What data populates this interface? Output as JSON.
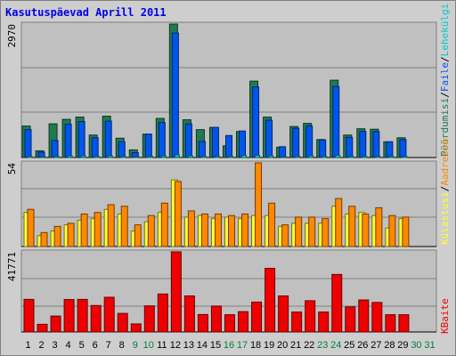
{
  "title": "Kasutuspäevad Aprill 2011",
  "colors": {
    "hits": "#1f7a52",
    "files": "#0055ee",
    "pages": "#00cccc",
    "visits": "#ffff33",
    "sites": "#ff8800",
    "kbytes": "#ee0000",
    "weekday_label": "#000000",
    "weekend_label": "#008040"
  },
  "chart_data": [
    {
      "type": "bar",
      "panel": "top",
      "ymax_label": "2970",
      "legend": [
        "Pöördumisi",
        "Faile",
        "Lehekülgi"
      ],
      "legend_separator": "/",
      "categories": [
        "1",
        "2",
        "3",
        "4",
        "5",
        "6",
        "7",
        "8",
        "9",
        "10",
        "11",
        "12",
        "13",
        "14",
        "15",
        "16",
        "17",
        "18",
        "19",
        "20",
        "21",
        "22",
        "23",
        "24",
        "25",
        "26",
        "27",
        "28",
        "29",
        "30",
        "31"
      ],
      "weekend_days": [
        "9",
        "10",
        "16",
        "17",
        "23",
        "24",
        "30",
        "31"
      ],
      "ylim": [
        0,
        2970
      ],
      "series": [
        {
          "name": "Pöördumisi",
          "values": [
            700,
            150,
            750,
            850,
            900,
            500,
            920,
            430,
            170,
            520,
            870,
            2970,
            840,
            620,
            670,
            260,
            580,
            1700,
            900,
            230,
            690,
            760,
            400,
            1720,
            500,
            640,
            630,
            350,
            440,
            null,
            null
          ]
        },
        {
          "name": "Faile",
          "values": [
            620,
            120,
            380,
            740,
            800,
            440,
            810,
            350,
            110,
            520,
            780,
            2770,
            750,
            360,
            670,
            490,
            590,
            1570,
            830,
            240,
            650,
            700,
            390,
            1580,
            450,
            580,
            580,
            350,
            400,
            null,
            null
          ]
        },
        {
          "name": "Lehekülgi",
          "values": [
            30,
            20,
            30,
            40,
            40,
            30,
            40,
            30,
            20,
            30,
            40,
            60,
            40,
            30,
            30,
            30,
            50,
            50,
            40,
            20,
            30,
            40,
            30,
            50,
            30,
            30,
            30,
            30,
            30,
            null,
            null
          ]
        }
      ]
    },
    {
      "type": "bar",
      "panel": "middle",
      "ymax_label": "54",
      "legend": [
        "Külastusi",
        "Aadresse"
      ],
      "legend_separator": "/",
      "categories": [
        "1",
        "2",
        "3",
        "4",
        "5",
        "6",
        "7",
        "8",
        "9",
        "10",
        "11",
        "12",
        "13",
        "14",
        "15",
        "16",
        "17",
        "18",
        "19",
        "20",
        "21",
        "22",
        "23",
        "24",
        "25",
        "26",
        "27",
        "28",
        "29",
        "30",
        "31"
      ],
      "ylim": [
        0,
        54
      ],
      "series": [
        {
          "name": "Külastusi",
          "values": [
            22,
            7,
            10,
            14,
            17,
            18,
            24,
            21,
            10,
            16,
            22,
            43,
            19,
            20,
            18,
            19,
            18,
            20,
            20,
            13,
            15,
            15,
            15,
            26,
            21,
            22,
            20,
            12,
            18,
            null,
            null
          ]
        },
        {
          "name": "Aadresse",
          "values": [
            24,
            9,
            13,
            15,
            21,
            22,
            27,
            26,
            14,
            20,
            28,
            42,
            23,
            21,
            21,
            20,
            21,
            54,
            28,
            14,
            19,
            19,
            18,
            31,
            26,
            21,
            25,
            20,
            19,
            null,
            null
          ]
        }
      ]
    },
    {
      "type": "bar",
      "panel": "bottom",
      "ymax_label": "41771",
      "legend": [
        "KBaite"
      ],
      "categories": [
        "1",
        "2",
        "3",
        "4",
        "5",
        "6",
        "7",
        "8",
        "9",
        "10",
        "11",
        "12",
        "13",
        "14",
        "15",
        "16",
        "17",
        "18",
        "19",
        "20",
        "21",
        "22",
        "23",
        "24",
        "25",
        "26",
        "27",
        "28",
        "29",
        "30",
        "31"
      ],
      "ylim": [
        0,
        41771
      ],
      "series": [
        {
          "name": "KBaite",
          "values": [
            17000,
            4000,
            8300,
            16900,
            17000,
            13800,
            18100,
            9700,
            4200,
            13600,
            19800,
            41771,
            18800,
            9100,
            13500,
            9000,
            10600,
            15600,
            33200,
            18800,
            10400,
            16300,
            10400,
            30000,
            13100,
            16700,
            15400,
            9000,
            9000,
            null,
            null
          ]
        }
      ]
    }
  ]
}
